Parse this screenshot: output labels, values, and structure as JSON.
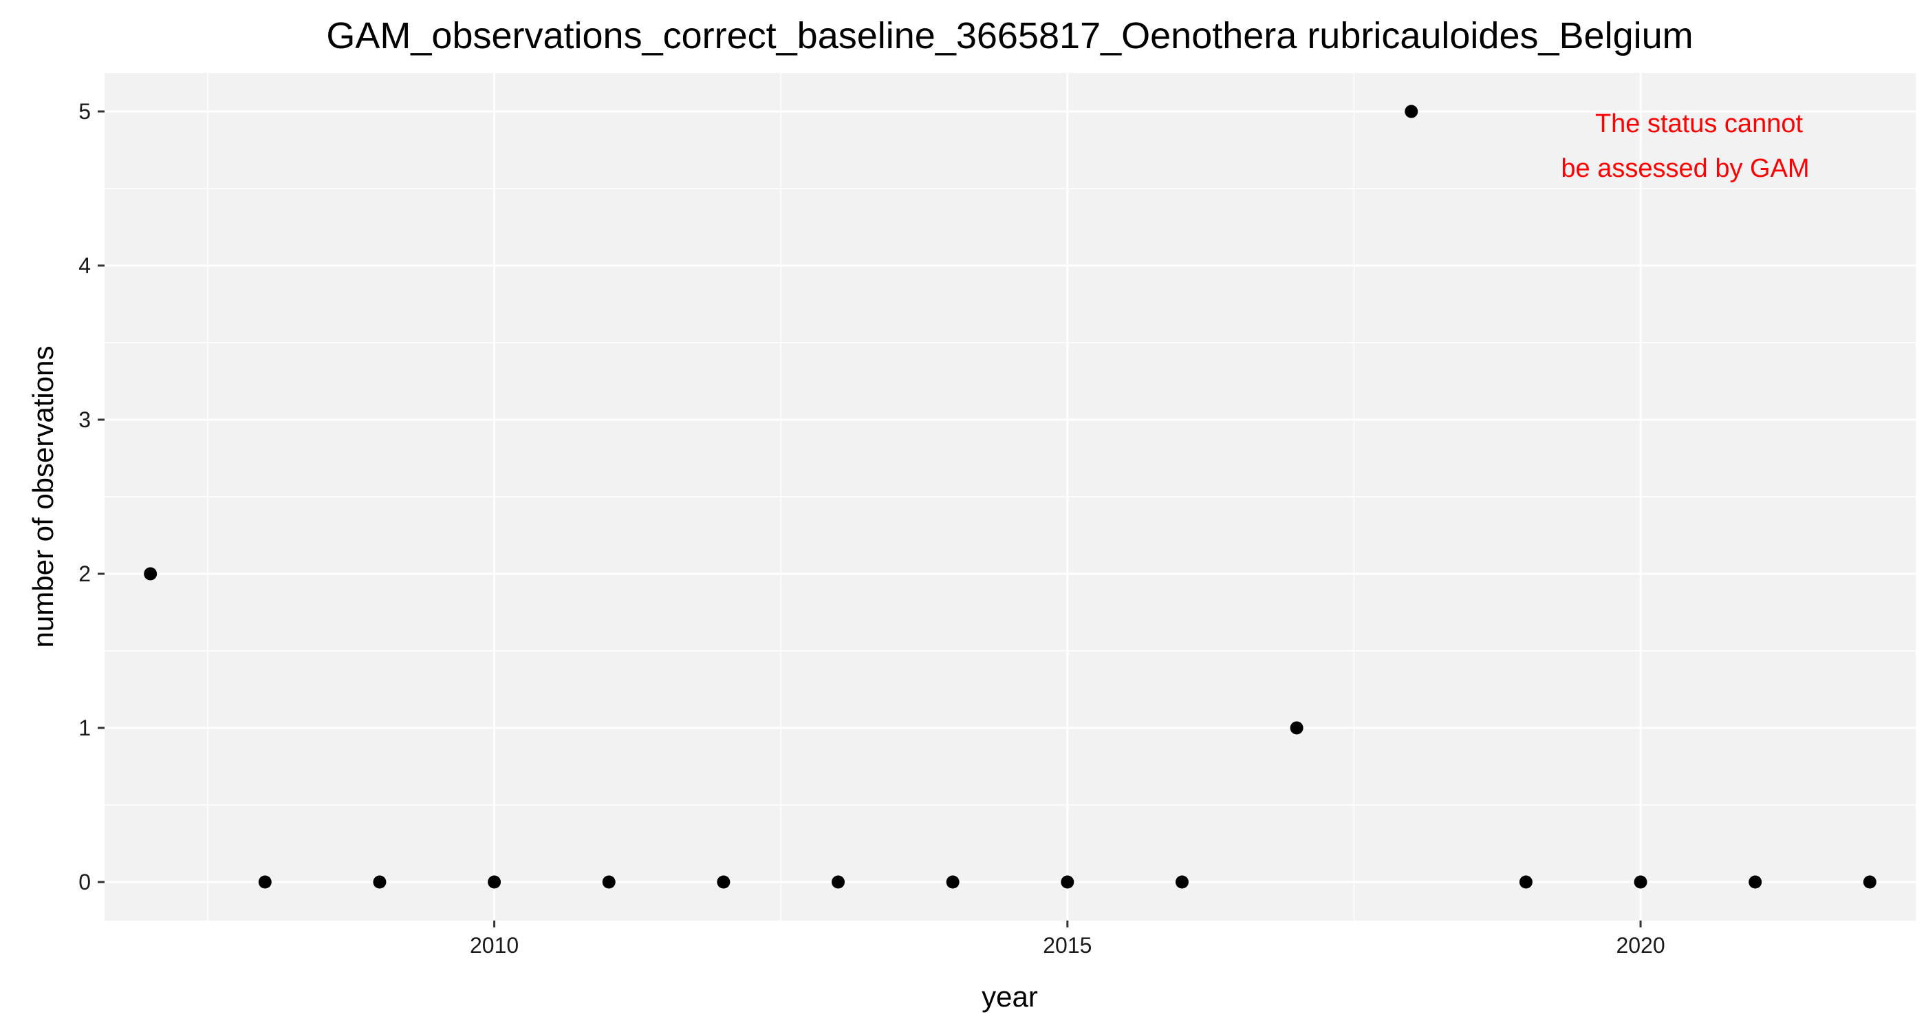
{
  "chart_data": {
    "type": "scatter",
    "title": "GAM_observations_correct_baseline_3665817_Oenothera rubricauloides_Belgium",
    "xlabel": "year",
    "ylabel": "number of observations",
    "xlim": [
      2006.6,
      2022.4
    ],
    "ylim": [
      -0.25,
      5.25
    ],
    "x_ticks": [
      2010,
      2015,
      2020
    ],
    "x_minor_ticks": [
      2007.5,
      2012.5,
      2017.5,
      2022.5
    ],
    "y_ticks": [
      0,
      1,
      2,
      3,
      4,
      5
    ],
    "y_minor_ticks": [
      0.5,
      1.5,
      2.5,
      3.5,
      4.5
    ],
    "x_tick_labels": [
      "2010",
      "2015",
      "2020"
    ],
    "y_tick_labels": [
      "0",
      "1",
      "2",
      "3",
      "4",
      "5"
    ],
    "grid": true,
    "colors": {
      "panel": "#f2f2f2",
      "grid": "#ffffff",
      "point": "#000000",
      "annotation": "#ff0000"
    },
    "annotation": {
      "lines": [
        "The status cannot",
        "be assessed by GAM"
      ],
      "placement": "top-right",
      "color": "#ff0000"
    },
    "points": [
      {
        "x": 2007,
        "y": 2
      },
      {
        "x": 2008,
        "y": 0
      },
      {
        "x": 2009,
        "y": 0
      },
      {
        "x": 2010,
        "y": 0
      },
      {
        "x": 2011,
        "y": 0
      },
      {
        "x": 2012,
        "y": 0
      },
      {
        "x": 2013,
        "y": 0
      },
      {
        "x": 2014,
        "y": 0
      },
      {
        "x": 2015,
        "y": 0
      },
      {
        "x": 2016,
        "y": 0
      },
      {
        "x": 2017,
        "y": 1
      },
      {
        "x": 2018,
        "y": 5
      },
      {
        "x": 2019,
        "y": 0
      },
      {
        "x": 2020,
        "y": 0
      },
      {
        "x": 2021,
        "y": 0
      },
      {
        "x": 2022,
        "y": 0
      }
    ]
  }
}
